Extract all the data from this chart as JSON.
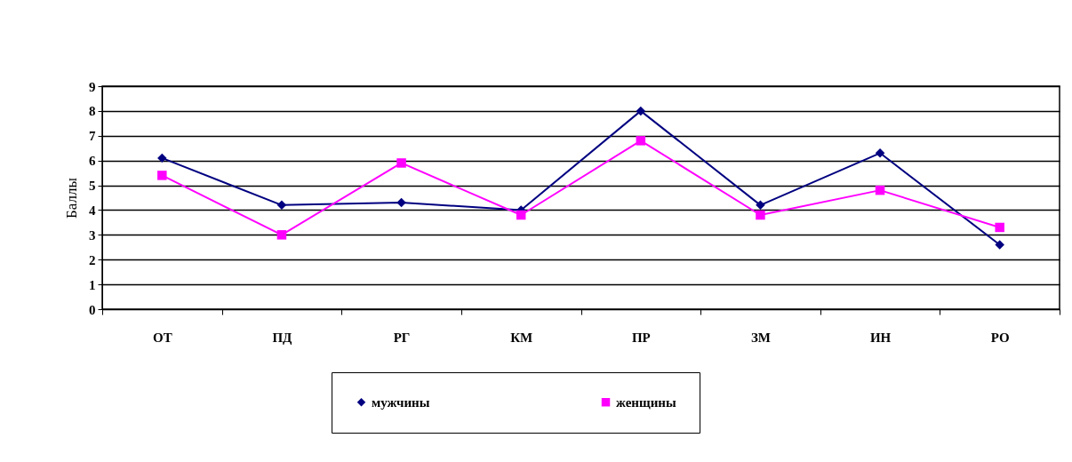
{
  "chart_data": {
    "type": "line",
    "ylabel": "Баллы",
    "categories": [
      "ОТ",
      "ПД",
      "РГ",
      "КМ",
      "ПР",
      "ЗМ",
      "ИН",
      "РО"
    ],
    "series": [
      {
        "name": "мужчины",
        "color": "#000080",
        "marker": "diamond",
        "values": [
          6.1,
          4.2,
          4.3,
          4.0,
          8.0,
          4.2,
          6.3,
          2.6
        ]
      },
      {
        "name": "женщины",
        "color": "#ff00ff",
        "marker": "square",
        "values": [
          5.4,
          3.0,
          5.9,
          3.8,
          6.8,
          3.8,
          4.8,
          3.3
        ]
      }
    ],
    "ylim": [
      0,
      9
    ],
    "yticks": [
      0,
      1,
      2,
      3,
      4,
      5,
      6,
      7,
      8,
      9
    ],
    "grid": "y",
    "legend": "bottom"
  }
}
